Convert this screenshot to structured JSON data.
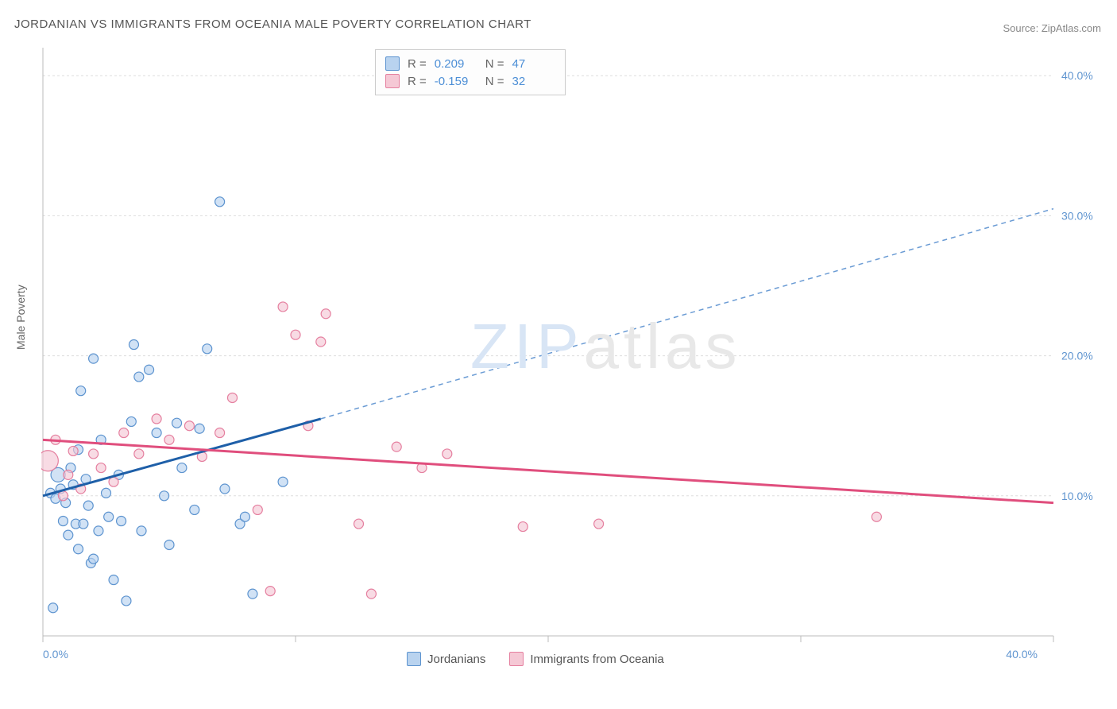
{
  "title": "JORDANIAN VS IMMIGRANTS FROM OCEANIA MALE POVERTY CORRELATION CHART",
  "source_prefix": "Source: ",
  "source_name": "ZipAtlas.com",
  "y_axis_label": "Male Poverty",
  "watermark_zip": "ZIP",
  "watermark_atlas": "atlas",
  "chart": {
    "type": "scatter",
    "xlim": [
      0,
      40
    ],
    "ylim": [
      0,
      42
    ],
    "x_ticks": [
      0,
      10,
      20,
      30,
      40
    ],
    "x_tick_labels": [
      "0.0%",
      "",
      "",
      "",
      "40.0%"
    ],
    "y_ticks": [
      10,
      20,
      30,
      40
    ],
    "y_tick_labels": [
      "10.0%",
      "20.0%",
      "30.0%",
      "40.0%"
    ],
    "grid_color": "#dddddd",
    "axis_color": "#888888",
    "background_color": "#ffffff",
    "series": [
      {
        "name": "Jordanians",
        "color_fill": "#b9d3ef",
        "color_stroke": "#5c93cf",
        "R": "0.209",
        "N": "47",
        "trend": {
          "x1": 0,
          "y1": 10.0,
          "x2": 11,
          "y2": 15.5,
          "color": "#1e5fa8",
          "width": 3
        },
        "trend_dash": {
          "x1": 11,
          "y1": 15.5,
          "x2": 40,
          "y2": 30.5,
          "color": "#6a9bd4",
          "width": 1.5
        },
        "points": [
          {
            "x": 0.3,
            "y": 10.2,
            "r": 6
          },
          {
            "x": 0.5,
            "y": 9.8,
            "r": 6
          },
          {
            "x": 0.6,
            "y": 11.5,
            "r": 9
          },
          {
            "x": 0.7,
            "y": 10.5,
            "r": 6
          },
          {
            "x": 0.8,
            "y": 8.2,
            "r": 6
          },
          {
            "x": 0.9,
            "y": 9.5,
            "r": 6
          },
          {
            "x": 1.0,
            "y": 7.2,
            "r": 6
          },
          {
            "x": 1.1,
            "y": 12.0,
            "r": 6
          },
          {
            "x": 1.2,
            "y": 10.8,
            "r": 6
          },
          {
            "x": 1.3,
            "y": 8.0,
            "r": 6
          },
          {
            "x": 1.4,
            "y": 6.2,
            "r": 6
          },
          {
            "x": 1.5,
            "y": 17.5,
            "r": 6
          },
          {
            "x": 1.6,
            "y": 8.0,
            "r": 6
          },
          {
            "x": 1.7,
            "y": 11.2,
            "r": 6
          },
          {
            "x": 1.8,
            "y": 9.3,
            "r": 6
          },
          {
            "x": 1.9,
            "y": 5.2,
            "r": 6
          },
          {
            "x": 2.0,
            "y": 19.8,
            "r": 6
          },
          {
            "x": 2.2,
            "y": 7.5,
            "r": 6
          },
          {
            "x": 2.3,
            "y": 14.0,
            "r": 6
          },
          {
            "x": 2.5,
            "y": 10.2,
            "r": 6
          },
          {
            "x": 2.6,
            "y": 8.5,
            "r": 6
          },
          {
            "x": 2.8,
            "y": 4.0,
            "r": 6
          },
          {
            "x": 3.0,
            "y": 11.5,
            "r": 6
          },
          {
            "x": 3.1,
            "y": 8.2,
            "r": 6
          },
          {
            "x": 3.3,
            "y": 2.5,
            "r": 6
          },
          {
            "x": 3.5,
            "y": 15.3,
            "r": 6
          },
          {
            "x": 3.6,
            "y": 20.8,
            "r": 6
          },
          {
            "x": 3.8,
            "y": 18.5,
            "r": 6
          },
          {
            "x": 3.9,
            "y": 7.5,
            "r": 6
          },
          {
            "x": 4.2,
            "y": 19.0,
            "r": 6
          },
          {
            "x": 4.5,
            "y": 14.5,
            "r": 6
          },
          {
            "x": 4.8,
            "y": 10.0,
            "r": 6
          },
          {
            "x": 5.0,
            "y": 6.5,
            "r": 6
          },
          {
            "x": 5.3,
            "y": 15.2,
            "r": 6
          },
          {
            "x": 5.5,
            "y": 12.0,
            "r": 6
          },
          {
            "x": 6.0,
            "y": 9.0,
            "r": 6
          },
          {
            "x": 6.2,
            "y": 14.8,
            "r": 6
          },
          {
            "x": 6.5,
            "y": 20.5,
            "r": 6
          },
          {
            "x": 7.0,
            "y": 31.0,
            "r": 6
          },
          {
            "x": 7.2,
            "y": 10.5,
            "r": 6
          },
          {
            "x": 7.8,
            "y": 8.0,
            "r": 6
          },
          {
            "x": 8.0,
            "y": 8.5,
            "r": 6
          },
          {
            "x": 8.3,
            "y": 3.0,
            "r": 6
          },
          {
            "x": 9.5,
            "y": 11.0,
            "r": 6
          },
          {
            "x": 0.4,
            "y": 2.0,
            "r": 6
          },
          {
            "x": 2.0,
            "y": 5.5,
            "r": 6
          },
          {
            "x": 1.4,
            "y": 13.3,
            "r": 6
          }
        ]
      },
      {
        "name": "Immigrants from Oceania",
        "color_fill": "#f5c8d5",
        "color_stroke": "#e57f9f",
        "R": "-0.159",
        "N": "32",
        "trend": {
          "x1": 0,
          "y1": 14.0,
          "x2": 40,
          "y2": 9.5,
          "color": "#e04e7d",
          "width": 3
        },
        "points": [
          {
            "x": 0.2,
            "y": 12.5,
            "r": 13
          },
          {
            "x": 0.5,
            "y": 14.0,
            "r": 6
          },
          {
            "x": 0.8,
            "y": 10.0,
            "r": 6
          },
          {
            "x": 1.0,
            "y": 11.5,
            "r": 6
          },
          {
            "x": 1.2,
            "y": 13.2,
            "r": 6
          },
          {
            "x": 1.5,
            "y": 10.5,
            "r": 6
          },
          {
            "x": 2.0,
            "y": 13.0,
            "r": 6
          },
          {
            "x": 2.3,
            "y": 12.0,
            "r": 6
          },
          {
            "x": 2.8,
            "y": 11.0,
            "r": 6
          },
          {
            "x": 3.2,
            "y": 14.5,
            "r": 6
          },
          {
            "x": 3.8,
            "y": 13.0,
            "r": 6
          },
          {
            "x": 4.5,
            "y": 15.5,
            "r": 6
          },
          {
            "x": 5.0,
            "y": 14.0,
            "r": 6
          },
          {
            "x": 5.8,
            "y": 15.0,
            "r": 6
          },
          {
            "x": 6.3,
            "y": 12.8,
            "r": 6
          },
          {
            "x": 7.0,
            "y": 14.5,
            "r": 6
          },
          {
            "x": 7.5,
            "y": 17.0,
            "r": 6
          },
          {
            "x": 8.5,
            "y": 9.0,
            "r": 6
          },
          {
            "x": 9.0,
            "y": 3.2,
            "r": 6
          },
          {
            "x": 9.5,
            "y": 23.5,
            "r": 6
          },
          {
            "x": 10.0,
            "y": 21.5,
            "r": 6
          },
          {
            "x": 10.5,
            "y": 15.0,
            "r": 6
          },
          {
            "x": 11.0,
            "y": 21.0,
            "r": 6
          },
          {
            "x": 11.2,
            "y": 23.0,
            "r": 6
          },
          {
            "x": 12.5,
            "y": 8.0,
            "r": 6
          },
          {
            "x": 13.0,
            "y": 3.0,
            "r": 6
          },
          {
            "x": 14.0,
            "y": 13.5,
            "r": 6
          },
          {
            "x": 15.0,
            "y": 12.0,
            "r": 6
          },
          {
            "x": 16.0,
            "y": 13.0,
            "r": 6
          },
          {
            "x": 19.0,
            "y": 7.8,
            "r": 6
          },
          {
            "x": 22.0,
            "y": 8.0,
            "r": 6
          },
          {
            "x": 33.0,
            "y": 8.5,
            "r": 6
          }
        ]
      }
    ]
  },
  "stats_box": {
    "r_label": "R  =",
    "n_label": "N  ="
  },
  "bottom_legend": {
    "series1": "Jordanians",
    "series2": "Immigrants from Oceania"
  }
}
